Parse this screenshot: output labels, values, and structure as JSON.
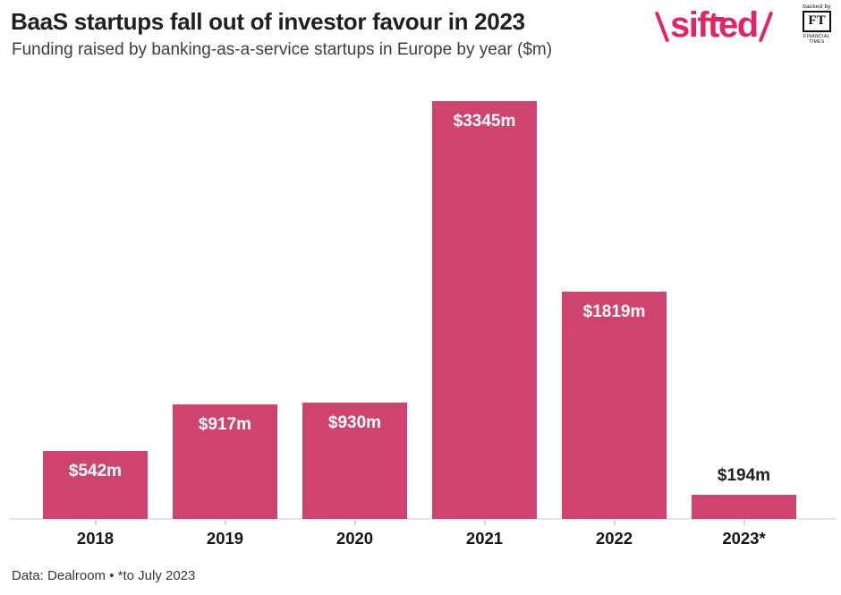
{
  "header": {
    "title": "BaaS startups fall out of investor favour in 2023",
    "subtitle": "Funding raised by banking-as-a-service startups in Europe by year ($m)"
  },
  "logo": {
    "prefix": "\\",
    "name": "sifted",
    "suffix": "/",
    "color": "#e22560",
    "badge": {
      "backed_by": "backed by",
      "initials": "FT",
      "line1": "FINANCIAL",
      "line2": "TIMES"
    }
  },
  "chart_data": {
    "type": "bar",
    "title": "BaaS startups fall out of investor favour in 2023",
    "subtitle": "Funding raised by banking-as-a-service startups in Europe by year ($m)",
    "categories": [
      "2018",
      "2019",
      "2020",
      "2021",
      "2022",
      "2023*"
    ],
    "values": [
      542,
      917,
      930,
      3345,
      1819,
      194
    ],
    "data_labels": [
      "$542m",
      "$917m",
      "$930m",
      "$3345m",
      "$1819m",
      "$194m"
    ],
    "unit": "$m",
    "bar_color": "#ce446e",
    "label_color_inside": "#ffffff",
    "label_color_outside": "#1f1f1f",
    "axis_color": "#e4e4e4",
    "xlabel": "",
    "ylabel": "",
    "ylim": [
      0,
      3345
    ],
    "grid": false,
    "legend": false,
    "label_placement_note": "value labels inside bar tops; 2023* label above its short bar"
  },
  "footer": {
    "source": "Data: Dealroom • *to July 2023"
  }
}
